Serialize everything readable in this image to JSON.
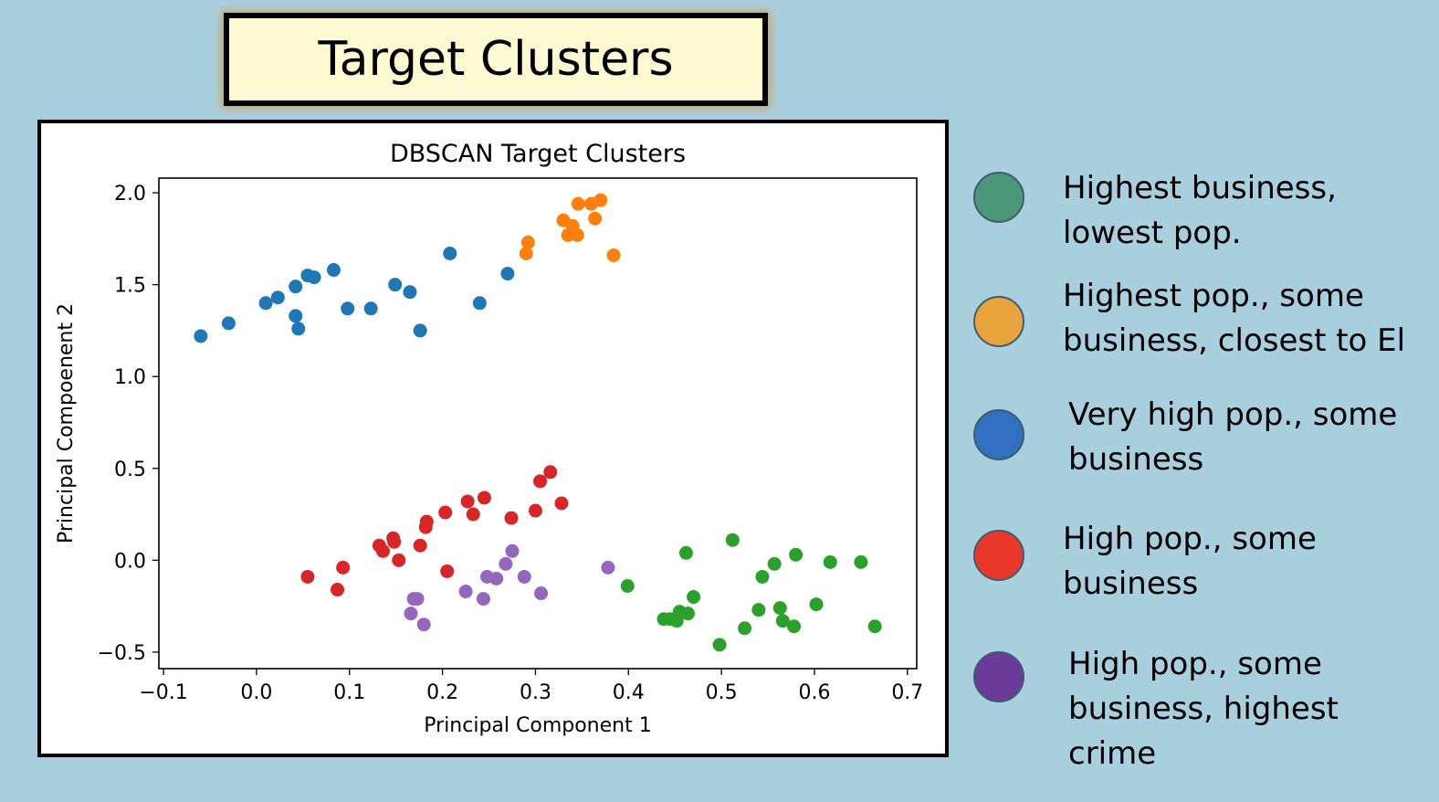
{
  "header": {
    "title": "Target Clusters"
  },
  "legend": [
    {
      "color": "#4c977a",
      "text": "Highest business,\nlowest pop."
    },
    {
      "color": "#e8a33d",
      "text": "Highest pop., some\nbusiness, closest to El"
    },
    {
      "color": "#3270c0",
      "text": "Very high pop., some\nbusiness"
    },
    {
      "color": "#e8382a",
      "text": "High pop., some\nbusiness"
    },
    {
      "color": "#6b3a9b",
      "text": "High pop., some\nbusiness, highest\ncrime"
    }
  ],
  "chart_data": {
    "type": "scatter",
    "title": "DBSCAN Target Clusters",
    "xlabel": "Principal Component 1",
    "ylabel": "Principal Compoenent 2",
    "xlim": [
      -0.105,
      0.71
    ],
    "ylim": [
      -0.59,
      2.08
    ],
    "xticks": [
      -0.1,
      0.0,
      0.1,
      0.2,
      0.3,
      0.4,
      0.5,
      0.6,
      0.7
    ],
    "xtick_labels": [
      "−0.1",
      "0.0",
      "0.1",
      "0.2",
      "0.3",
      "0.4",
      "0.5",
      "0.6",
      "0.7"
    ],
    "yticks": [
      -0.5,
      0.0,
      0.5,
      1.0,
      1.5,
      2.0
    ],
    "ytick_labels": [
      "−0.5",
      "0.0",
      "0.5",
      "1.0",
      "1.5",
      "2.0"
    ],
    "grid": false,
    "series": [
      {
        "color": "#1f77b4",
        "points": [
          [
            -0.06,
            1.22
          ],
          [
            -0.03,
            1.29
          ],
          [
            0.01,
            1.4
          ],
          [
            0.023,
            1.43
          ],
          [
            0.042,
            1.49
          ],
          [
            0.042,
            1.33
          ],
          [
            0.045,
            1.26
          ],
          [
            0.055,
            1.55
          ],
          [
            0.062,
            1.54
          ],
          [
            0.083,
            1.58
          ],
          [
            0.098,
            1.37
          ],
          [
            0.123,
            1.37
          ],
          [
            0.149,
            1.5
          ],
          [
            0.165,
            1.46
          ],
          [
            0.176,
            1.25
          ],
          [
            0.208,
            1.67
          ],
          [
            0.24,
            1.4
          ],
          [
            0.27,
            1.56
          ]
        ]
      },
      {
        "color": "#ff7f0e",
        "points": [
          [
            0.29,
            1.67
          ],
          [
            0.292,
            1.73
          ],
          [
            0.33,
            1.85
          ],
          [
            0.335,
            1.77
          ],
          [
            0.34,
            1.82
          ],
          [
            0.345,
            1.77
          ],
          [
            0.346,
            1.94
          ],
          [
            0.36,
            1.94
          ],
          [
            0.364,
            1.86
          ],
          [
            0.37,
            1.96
          ],
          [
            0.384,
            1.66
          ]
        ]
      },
      {
        "color": "#d62728",
        "points": [
          [
            0.055,
            -0.09
          ],
          [
            0.087,
            -0.16
          ],
          [
            0.093,
            -0.04
          ],
          [
            0.132,
            0.08
          ],
          [
            0.136,
            0.05
          ],
          [
            0.147,
            0.12
          ],
          [
            0.148,
            0.1
          ],
          [
            0.153,
            0.0
          ],
          [
            0.176,
            0.08
          ],
          [
            0.182,
            0.18
          ],
          [
            0.183,
            0.21
          ],
          [
            0.203,
            0.26
          ],
          [
            0.205,
            -0.06
          ],
          [
            0.227,
            0.32
          ],
          [
            0.233,
            0.25
          ],
          [
            0.245,
            0.34
          ],
          [
            0.274,
            0.23
          ],
          [
            0.3,
            0.27
          ],
          [
            0.305,
            0.43
          ],
          [
            0.316,
            0.48
          ],
          [
            0.328,
            0.31
          ]
        ]
      },
      {
        "color": "#9467bd",
        "points": [
          [
            0.166,
            -0.29
          ],
          [
            0.169,
            -0.21
          ],
          [
            0.173,
            -0.21
          ],
          [
            0.18,
            -0.35
          ],
          [
            0.225,
            -0.17
          ],
          [
            0.244,
            -0.21
          ],
          [
            0.248,
            -0.09
          ],
          [
            0.258,
            -0.1
          ],
          [
            0.268,
            -0.02
          ],
          [
            0.275,
            0.05
          ],
          [
            0.288,
            -0.09
          ],
          [
            0.306,
            -0.18
          ],
          [
            0.378,
            -0.04
          ]
        ]
      },
      {
        "color": "#2ca02c",
        "points": [
          [
            0.399,
            -0.14
          ],
          [
            0.438,
            -0.32
          ],
          [
            0.445,
            -0.32
          ],
          [
            0.452,
            -0.33
          ],
          [
            0.455,
            -0.28
          ],
          [
            0.462,
            0.04
          ],
          [
            0.464,
            -0.29
          ],
          [
            0.47,
            -0.2
          ],
          [
            0.498,
            -0.46
          ],
          [
            0.512,
            0.11
          ],
          [
            0.525,
            -0.37
          ],
          [
            0.54,
            -0.27
          ],
          [
            0.544,
            -0.09
          ],
          [
            0.557,
            -0.02
          ],
          [
            0.563,
            -0.26
          ],
          [
            0.566,
            -0.33
          ],
          [
            0.578,
            -0.36
          ],
          [
            0.58,
            0.03
          ],
          [
            0.602,
            -0.24
          ],
          [
            0.617,
            -0.01
          ],
          [
            0.65,
            -0.01
          ],
          [
            0.665,
            -0.36
          ]
        ]
      }
    ]
  }
}
